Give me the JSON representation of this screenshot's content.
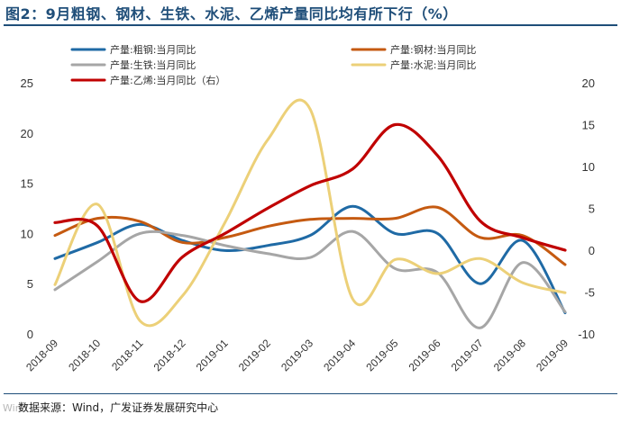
{
  "figure": {
    "title": "图2：9月粗钢、钢材、生铁、水泥、乙烯产量同比均有所下行（%）",
    "source": "数据来源：Wind，广发证券发展研究中心",
    "watermark": "Wind"
  },
  "chart_data": {
    "type": "line",
    "categories": [
      "2018-09",
      "2018-10",
      "2018-11",
      "2018-12",
      "2019-01",
      "2019-02",
      "2019-03",
      "2019-04",
      "2019-05",
      "2019-06",
      "2019-07",
      "2019-08",
      "2019-09"
    ],
    "left_axis": {
      "ylim": [
        0,
        25
      ],
      "ticks": [
        0,
        5,
        10,
        15,
        20,
        25
      ]
    },
    "right_axis": {
      "ylim": [
        -10,
        20
      ],
      "ticks": [
        -10,
        -5,
        0,
        5,
        10,
        15,
        20
      ]
    },
    "legend_position": "top",
    "series": [
      {
        "name": "产量:粗钢:当月同比",
        "axis": "left",
        "color": "#1f6aa5",
        "values": [
          7.5,
          9.1,
          10.9,
          9.3,
          8.3,
          8.8,
          9.8,
          12.7,
          10.0,
          10.0,
          5.0,
          9.3,
          2.1
        ]
      },
      {
        "name": "产量:钢材:当月同比",
        "axis": "left",
        "color": "#c55a11",
        "values": [
          9.8,
          11.5,
          11.2,
          9.1,
          9.6,
          10.7,
          11.4,
          11.5,
          11.5,
          12.6,
          9.6,
          9.8,
          6.9
        ]
      },
      {
        "name": "产量:生铁:当月同比",
        "axis": "left",
        "color": "#a6a6a6",
        "values": [
          4.4,
          7.2,
          10.0,
          9.8,
          8.8,
          8.0,
          7.6,
          10.2,
          6.5,
          6.1,
          0.6,
          7.1,
          2.2
        ]
      },
      {
        "name": "产量:水泥:当月同比",
        "axis": "left",
        "color": "#ecd078",
        "values": [
          4.9,
          12.9,
          1.3,
          3.8,
          11.1,
          19.3,
          22.4,
          3.5,
          7.4,
          6.0,
          7.5,
          5.1,
          4.1
        ]
      },
      {
        "name": "产量:乙烯:当月同比（右）",
        "axis": "right",
        "color": "#c00000",
        "values": [
          3.3,
          2.9,
          -6.1,
          -0.8,
          2.0,
          5.0,
          7.7,
          9.7,
          15.0,
          11.3,
          3.5,
          1.5,
          0.0
        ]
      }
    ]
  }
}
